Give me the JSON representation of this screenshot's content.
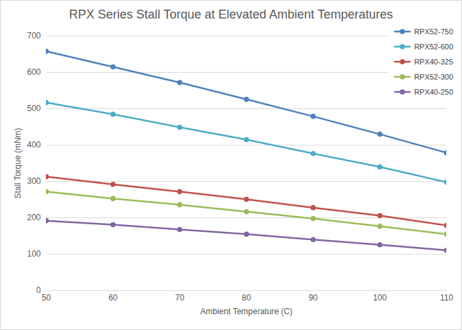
{
  "chart_data": {
    "type": "line",
    "title": "RPX Series Stall Torque at Elevated Ambient Temperatures",
    "x_label": "Ambient Temperature (C)",
    "y_label": "Stall Torque (mNm)",
    "x": [
      50,
      60,
      70,
      80,
      90,
      100,
      110
    ],
    "series": [
      {
        "name": "RPX52-750",
        "color": "#4f81bd",
        "values": [
          658,
          615,
          572,
          526,
          479,
          430,
          379
        ]
      },
      {
        "name": "RPX52-600",
        "color": "#4bacc6",
        "values": [
          517,
          485,
          449,
          415,
          377,
          340,
          298
        ]
      },
      {
        "name": "RPX40-325",
        "color": "#c0504d",
        "values": [
          313,
          292,
          272,
          251,
          228,
          206,
          179
        ]
      },
      {
        "name": "RPX52-300",
        "color": "#9bbb59",
        "values": [
          272,
          253,
          236,
          217,
          198,
          177,
          155
        ]
      },
      {
        "name": "RPX40-250",
        "color": "#8064a2",
        "values": [
          192,
          181,
          168,
          155,
          140,
          126,
          111
        ]
      }
    ],
    "xlim": [
      50,
      110
    ],
    "xticks": [
      50,
      60,
      70,
      80,
      90,
      100,
      110
    ],
    "ylim": [
      0,
      700
    ],
    "yticks": [
      0,
      100,
      200,
      300,
      400,
      500,
      600,
      700
    ],
    "grid": true,
    "legend": "top-right",
    "marker": "circle"
  }
}
